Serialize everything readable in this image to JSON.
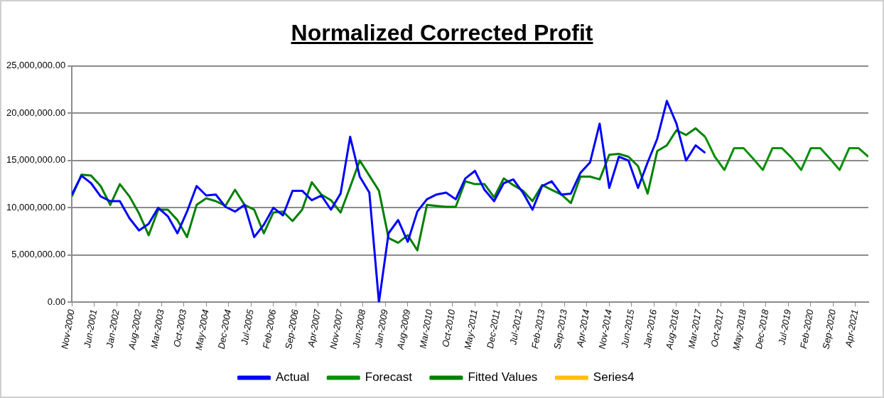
{
  "chart_data": {
    "type": "line",
    "title": "Normalized Corrected Profit",
    "x": [
      "2000-11",
      "2001-02",
      "2001-05",
      "2001-08",
      "2001-11",
      "2002-02",
      "2002-05",
      "2002-08",
      "2002-11",
      "2003-02",
      "2003-05",
      "2003-08",
      "2003-11",
      "2004-02",
      "2004-05",
      "2004-08",
      "2004-11",
      "2005-02",
      "2005-05",
      "2005-08",
      "2005-11",
      "2006-02",
      "2006-05",
      "2006-08",
      "2006-11",
      "2007-02",
      "2007-05",
      "2007-08",
      "2007-11",
      "2008-02",
      "2008-05",
      "2008-08",
      "2008-11",
      "2009-02",
      "2009-05",
      "2009-08",
      "2009-11",
      "2010-02",
      "2010-05",
      "2010-08",
      "2010-11",
      "2011-02",
      "2011-05",
      "2011-08",
      "2011-11",
      "2012-02",
      "2012-05",
      "2012-08",
      "2012-11",
      "2013-02",
      "2013-05",
      "2013-08",
      "2013-11",
      "2014-02",
      "2014-05",
      "2014-08",
      "2014-11",
      "2015-02",
      "2015-05",
      "2015-08",
      "2015-11",
      "2016-02",
      "2016-05",
      "2016-08",
      "2016-11",
      "2017-02",
      "2017-05",
      "2017-08",
      "2017-11",
      "2018-02",
      "2018-05",
      "2018-08",
      "2018-11",
      "2019-02",
      "2019-05",
      "2019-08",
      "2019-11",
      "2020-02",
      "2020-05",
      "2020-08",
      "2020-11",
      "2021-02",
      "2021-05",
      "2021-08"
    ],
    "series": [
      {
        "name": "Actual",
        "color": "#0000ff",
        "values": [
          11400000,
          13400000,
          12600000,
          11200000,
          10700000,
          10700000,
          8900000,
          7600000,
          8300000,
          10000000,
          9100000,
          7300000,
          9600000,
          12300000,
          11300000,
          11400000,
          10100000,
          9600000,
          10300000,
          6900000,
          8200000,
          10000000,
          9200000,
          11800000,
          11800000,
          10800000,
          11300000,
          9800000,
          11500000,
          17500000,
          13300000,
          11600000,
          0,
          7300000,
          8700000,
          6400000,
          9600000,
          10900000,
          11400000,
          11600000,
          10900000,
          13100000,
          13900000,
          11900000,
          10700000,
          12600000,
          13000000,
          11600000,
          9800000,
          12300000,
          12800000,
          11400000,
          11500000,
          13700000,
          14800000,
          18900000,
          12100000,
          15400000,
          15000000,
          12100000,
          14800000,
          17300000,
          21300000,
          18900000,
          15000000,
          16600000,
          15800000,
          null,
          null,
          null,
          null,
          null,
          null,
          null,
          null,
          null,
          null,
          null,
          null,
          null,
          null,
          null,
          null,
          null
        ]
      },
      {
        "name": "Forecast",
        "color": "#0a8f0a",
        "values": [
          null,
          null,
          null,
          null,
          null,
          null,
          null,
          null,
          null,
          null,
          null,
          null,
          null,
          null,
          null,
          null,
          null,
          null,
          null,
          null,
          null,
          null,
          null,
          null,
          null,
          null,
          null,
          null,
          null,
          null,
          null,
          null,
          null,
          null,
          null,
          null,
          null,
          null,
          null,
          null,
          null,
          null,
          null,
          null,
          null,
          null,
          null,
          null,
          null,
          null,
          null,
          null,
          null,
          null,
          null,
          null,
          null,
          null,
          null,
          null,
          null,
          null,
          null,
          null,
          null,
          null,
          17500000,
          15400000,
          14000000,
          16300000,
          16300000,
          15200000,
          14000000,
          16300000,
          16300000,
          15300000,
          14000000,
          16300000,
          16300000,
          15200000,
          14000000,
          16300000,
          16300000,
          15400000
        ]
      },
      {
        "name": "Fitted Values",
        "color": "#008000",
        "values": [
          11200000,
          13500000,
          13400000,
          12300000,
          10300000,
          12500000,
          11200000,
          9400000,
          7100000,
          9800000,
          9800000,
          8700000,
          6900000,
          10300000,
          11000000,
          10700000,
          10200000,
          11900000,
          10300000,
          9800000,
          7300000,
          9500000,
          9600000,
          8600000,
          9800000,
          12700000,
          11400000,
          10800000,
          9500000,
          12200000,
          15000000,
          13400000,
          11800000,
          6800000,
          6300000,
          7100000,
          5500000,
          10300000,
          10200000,
          10100000,
          10100000,
          12800000,
          12500000,
          12500000,
          11100000,
          13100000,
          12400000,
          11800000,
          10700000,
          12400000,
          11900000,
          11400000,
          10500000,
          13300000,
          13300000,
          13000000,
          15600000,
          15700000,
          15400000,
          14400000,
          11500000,
          16000000,
          16600000,
          18200000,
          17700000,
          18400000,
          17500000,
          null,
          null,
          null,
          null,
          null,
          null,
          null,
          null,
          null,
          null,
          null,
          null,
          null,
          null,
          null,
          null,
          null
        ]
      },
      {
        "name": "Series4",
        "color": "#ffc000",
        "values": [
          null,
          null,
          null,
          null,
          null,
          null,
          null,
          null,
          null,
          null,
          null,
          null,
          null,
          null,
          null,
          null,
          null,
          null,
          null,
          null,
          null,
          null,
          null,
          null,
          null,
          null,
          null,
          null,
          null,
          null,
          null,
          null,
          null,
          null,
          null,
          null,
          null,
          null,
          null,
          null,
          null,
          null,
          null,
          null,
          null,
          null,
          null,
          null,
          null,
          null,
          null,
          null,
          null,
          null,
          null,
          null,
          null,
          null,
          null,
          null,
          null,
          null,
          null,
          null,
          null,
          null,
          null,
          null,
          null,
          null,
          null,
          null,
          null,
          null,
          null,
          null,
          null,
          null,
          null,
          null,
          null,
          null,
          null,
          null
        ]
      }
    ],
    "xlim": [
      "2000-11",
      "2021-08"
    ],
    "xticks": [
      {
        "value": "2000-11",
        "label": "Nov-2000"
      },
      {
        "value": "2001-06",
        "label": "Jun-2001"
      },
      {
        "value": "2002-01",
        "label": "Jan-2002"
      },
      {
        "value": "2002-08",
        "label": "Aug-2002"
      },
      {
        "value": "2003-03",
        "label": "Mar-2003"
      },
      {
        "value": "2003-10",
        "label": "Oct-2003"
      },
      {
        "value": "2004-05",
        "label": "May-2004"
      },
      {
        "value": "2004-12",
        "label": "Dec-2004"
      },
      {
        "value": "2005-07",
        "label": "Jul-2005"
      },
      {
        "value": "2006-02",
        "label": "Feb-2006"
      },
      {
        "value": "2006-09",
        "label": "Sep-2006"
      },
      {
        "value": "2007-04",
        "label": "Apr-2007"
      },
      {
        "value": "2007-11",
        "label": "Nov-2007"
      },
      {
        "value": "2008-06",
        "label": "Jun-2008"
      },
      {
        "value": "2009-01",
        "label": "Jan-2009"
      },
      {
        "value": "2009-08",
        "label": "Aug-2009"
      },
      {
        "value": "2010-03",
        "label": "Mar-2010"
      },
      {
        "value": "2010-10",
        "label": "Oct-2010"
      },
      {
        "value": "2011-05",
        "label": "May-2011"
      },
      {
        "value": "2011-12",
        "label": "Dec-2011"
      },
      {
        "value": "2012-07",
        "label": "Jul-2012"
      },
      {
        "value": "2013-02",
        "label": "Feb-2013"
      },
      {
        "value": "2013-09",
        "label": "Sep-2013"
      },
      {
        "value": "2014-04",
        "label": "Apr-2014"
      },
      {
        "value": "2014-11",
        "label": "Nov-2014"
      },
      {
        "value": "2015-06",
        "label": "Jun-2015"
      },
      {
        "value": "2016-01",
        "label": "Jan-2016"
      },
      {
        "value": "2016-08",
        "label": "Aug-2016"
      },
      {
        "value": "2017-03",
        "label": "Mar-2017"
      },
      {
        "value": "2017-10",
        "label": "Oct-2017"
      },
      {
        "value": "2018-05",
        "label": "May-2018"
      },
      {
        "value": "2018-12",
        "label": "Dec-2018"
      },
      {
        "value": "2019-07",
        "label": "Jul-2019"
      },
      {
        "value": "2020-02",
        "label": "Feb-2020"
      },
      {
        "value": "2020-09",
        "label": "Sep-2020"
      },
      {
        "value": "2021-04",
        "label": "Apr-2021"
      }
    ],
    "ylim": [
      0,
      25000000
    ],
    "yticks": [
      {
        "value": 0,
        "label": "0.00"
      },
      {
        "value": 5000000,
        "label": "5,000,000.00"
      },
      {
        "value": 10000000,
        "label": "10,000,000.00"
      },
      {
        "value": 15000000,
        "label": "15,000,000.00"
      },
      {
        "value": 20000000,
        "label": "20,000,000.00"
      },
      {
        "value": 25000000,
        "label": "25,000,000.00"
      }
    ],
    "grid": "y",
    "legend": "bottom",
    "marker": "none",
    "line_style": "solid"
  }
}
